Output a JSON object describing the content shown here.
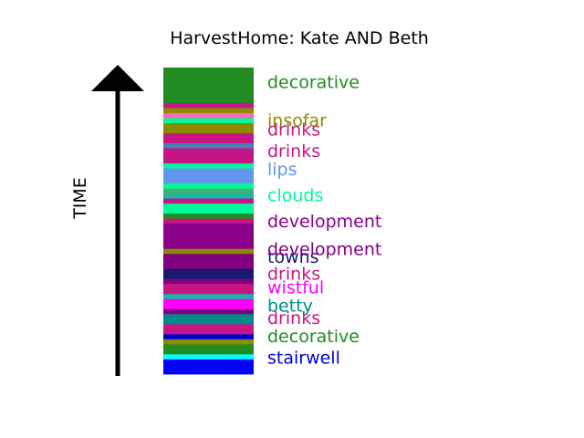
{
  "chart_data": {
    "type": "bar",
    "orientation": "stacked-vertical-strip",
    "title": "HarvestHome: Kate AND Beth",
    "ylabel": "TIME",
    "arrow": "up",
    "segments": [
      {
        "color": "#0000FF"
      },
      {
        "color": "#0000FF"
      },
      {
        "color": "#0000FF"
      },
      {
        "color": "#00FFFF"
      },
      {
        "color": "#228B22"
      },
      {
        "color": "#228B22"
      },
      {
        "color": "#8B8B00"
      },
      {
        "color": "#0000CD"
      },
      {
        "color": "#C71585"
      },
      {
        "color": "#C71585"
      },
      {
        "color": "#008B8B"
      },
      {
        "color": "#008B8B"
      },
      {
        "color": "#800080"
      },
      {
        "color": "#FF00FF"
      },
      {
        "color": "#FF00FF"
      },
      {
        "color": "#20B2AA"
      },
      {
        "color": "#C71585"
      },
      {
        "color": "#C71585"
      },
      {
        "color": "#800080"
      },
      {
        "color": "#191970"
      },
      {
        "color": "#191970"
      },
      {
        "color": "#800080"
      },
      {
        "color": "#800080"
      },
      {
        "color": "#800080"
      },
      {
        "color": "#8B8B00"
      },
      {
        "color": "#8B008B"
      },
      {
        "color": "#8B008B"
      },
      {
        "color": "#8B008B"
      },
      {
        "color": "#8B008B"
      },
      {
        "color": "#8B008B"
      },
      {
        "color": "#C71585"
      },
      {
        "color": "#228B22"
      },
      {
        "color": "#00FA9A"
      },
      {
        "color": "#00FA9A"
      },
      {
        "color": "#C71585"
      },
      {
        "color": "#20B2AA"
      },
      {
        "color": "#3CB371"
      },
      {
        "color": "#00FA9A"
      },
      {
        "color": "#6495ED"
      },
      {
        "color": "#6495ED"
      },
      {
        "color": "#6495ED"
      },
      {
        "color": "#00FA9A"
      },
      {
        "color": "#C71585"
      },
      {
        "color": "#C71585"
      },
      {
        "color": "#C71585"
      },
      {
        "color": "#4682B4"
      },
      {
        "color": "#C71585"
      },
      {
        "color": "#C71585"
      },
      {
        "color": "#8B8B00"
      },
      {
        "color": "#8B8B00"
      },
      {
        "color": "#00FA9A"
      },
      {
        "color": "#FF69B4"
      },
      {
        "color": "#8B8B00"
      },
      {
        "color": "#C71585"
      },
      {
        "color": "#228B22"
      },
      {
        "color": "#228B22"
      },
      {
        "color": "#228B22"
      },
      {
        "color": "#228B22"
      },
      {
        "color": "#228B22"
      },
      {
        "color": "#228B22"
      },
      {
        "color": "#228B22"
      }
    ],
    "labels": [
      {
        "text": "stairwell",
        "position": 0.05,
        "color": "#0000CD"
      },
      {
        "text": "decorative",
        "position": 0.12,
        "color": "#228B22"
      },
      {
        "text": "drinks",
        "position": 0.18,
        "color": "#C71585"
      },
      {
        "text": "betty",
        "position": 0.22,
        "color": "#008B8B"
      },
      {
        "text": "wistful",
        "position": 0.28,
        "color": "#FF00FF"
      },
      {
        "text": "drinks",
        "position": 0.325,
        "color": "#C71585"
      },
      {
        "text": "towns",
        "position": 0.38,
        "color": "#191970"
      },
      {
        "text": "development",
        "position": 0.405,
        "color": "#800080"
      },
      {
        "text": "development",
        "position": 0.495,
        "color": "#8B008B"
      },
      {
        "text": "clouds",
        "position": 0.58,
        "color": "#00FA9A"
      },
      {
        "text": "lips",
        "position": 0.665,
        "color": "#6495ED"
      },
      {
        "text": "drinks",
        "position": 0.725,
        "color": "#C71585"
      },
      {
        "text": "drinks",
        "position": 0.795,
        "color": "#C71585"
      },
      {
        "text": "insofar",
        "position": 0.825,
        "color": "#8B8B00"
      },
      {
        "text": "decorative",
        "position": 0.95,
        "color": "#228B22"
      }
    ]
  }
}
